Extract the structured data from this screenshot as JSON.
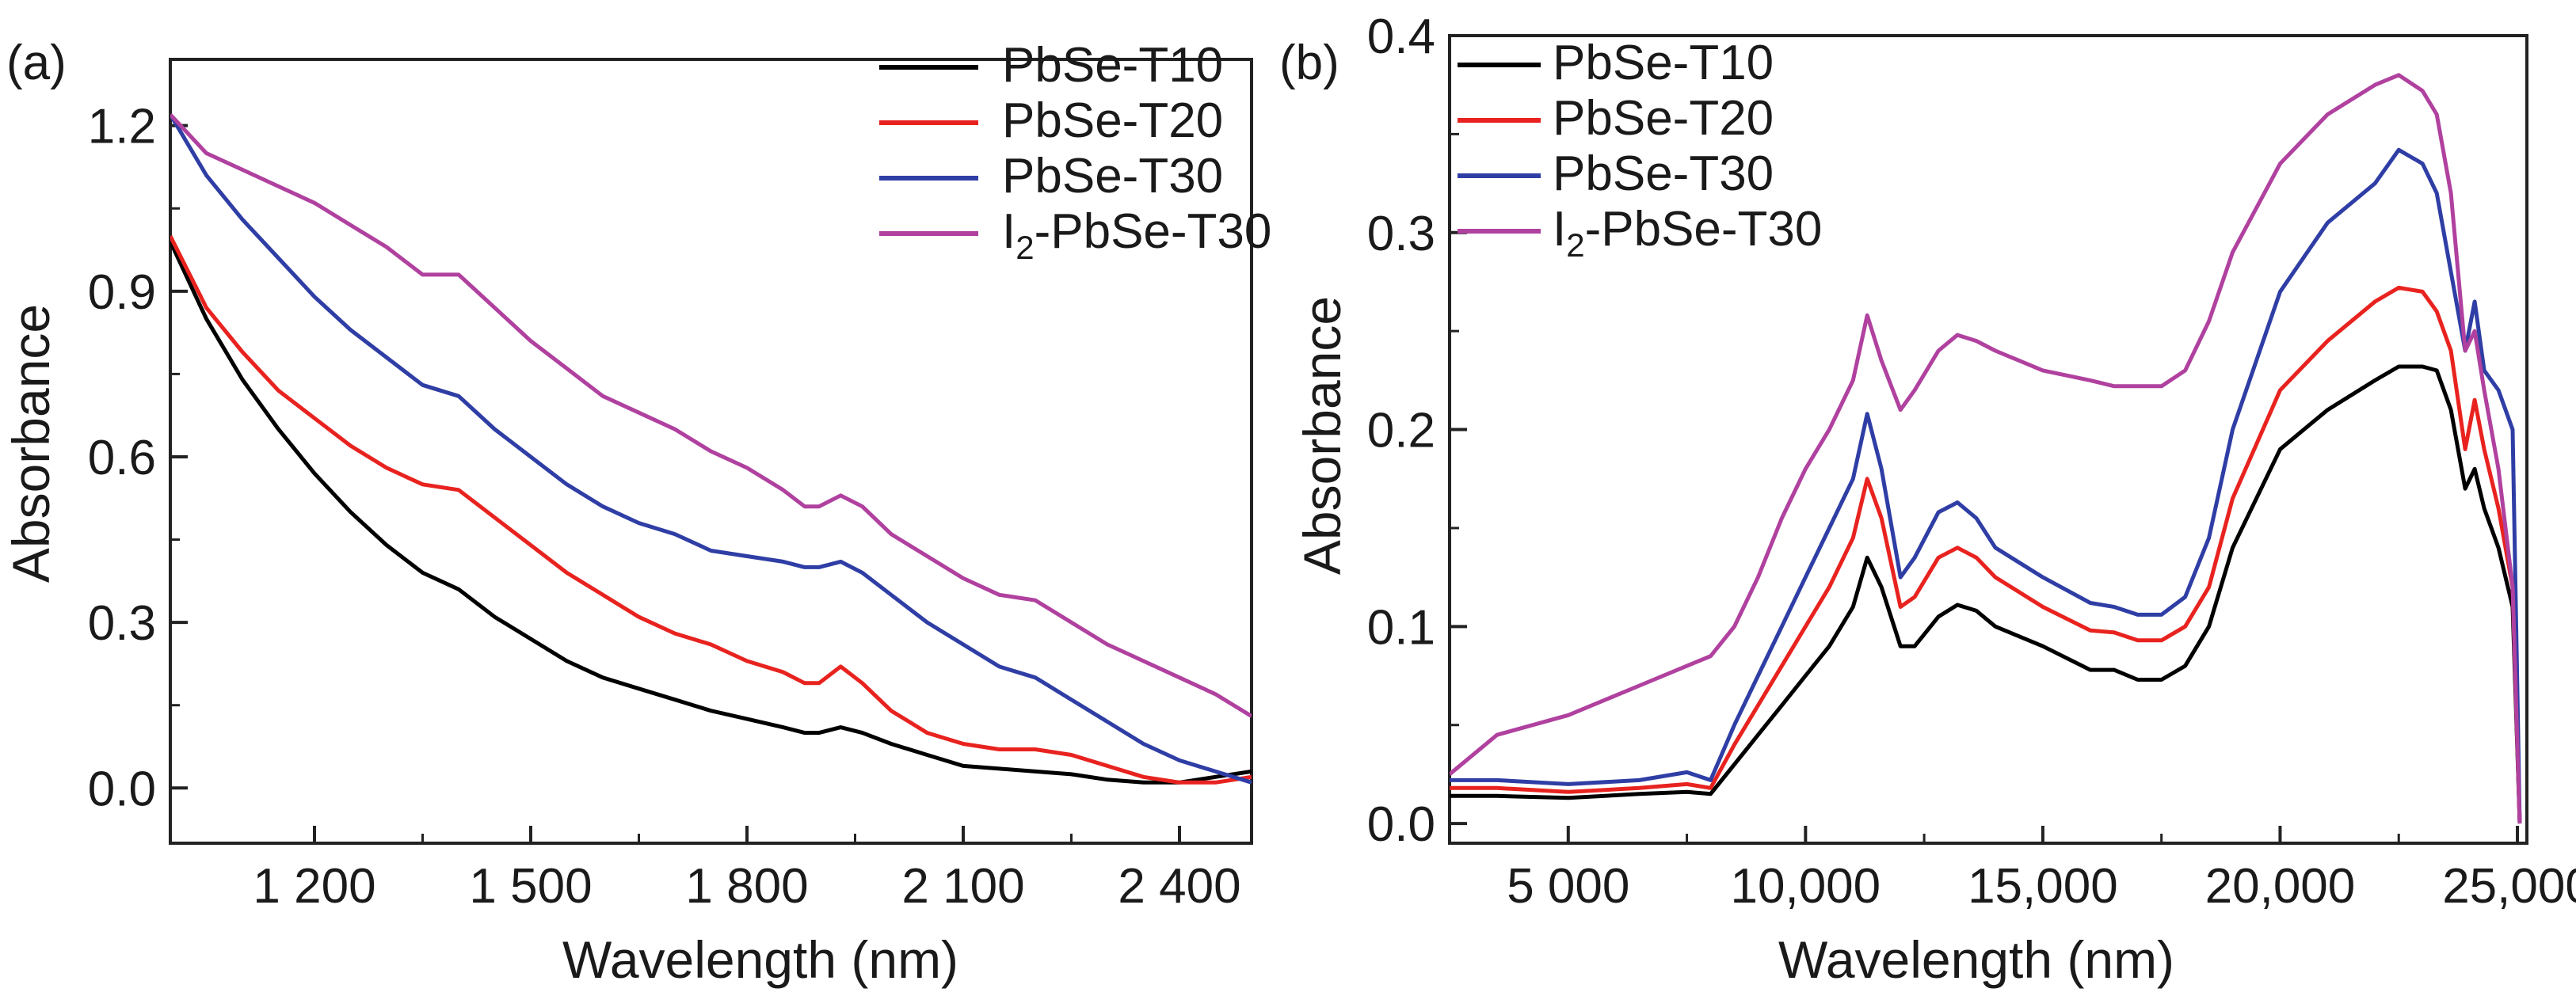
{
  "chart_data": [
    {
      "panel": "(a)",
      "type": "line",
      "xlabel": "Wavelength (nm)",
      "ylabel": "Absorbance",
      "xlim": [
        1000,
        2500
      ],
      "ylim": [
        -0.1,
        1.32
      ],
      "xticks": [
        1200,
        1500,
        1800,
        2100,
        2400
      ],
      "xtick_labels": [
        "1 200",
        "1 500",
        "1 800",
        "2 100",
        "2 400"
      ],
      "yticks": [
        0.0,
        0.3,
        0.6,
        0.9,
        1.2
      ],
      "ytick_labels": [
        "0.0",
        "0.3",
        "0.6",
        "0.9",
        "1.2"
      ],
      "legend_position": "top-right",
      "series": [
        {
          "name": "PbSe-T10",
          "color": "#000000",
          "x": [
            1000,
            1050,
            1100,
            1150,
            1200,
            1250,
            1300,
            1350,
            1400,
            1450,
            1500,
            1550,
            1600,
            1650,
            1700,
            1750,
            1800,
            1850,
            1880,
            1900,
            1930,
            1960,
            2000,
            2050,
            2100,
            2150,
            2200,
            2250,
            2300,
            2350,
            2400,
            2450,
            2500
          ],
          "y": [
            0.99,
            0.85,
            0.74,
            0.65,
            0.57,
            0.5,
            0.44,
            0.39,
            0.36,
            0.31,
            0.27,
            0.23,
            0.2,
            0.18,
            0.16,
            0.14,
            0.125,
            0.11,
            0.1,
            0.1,
            0.11,
            0.1,
            0.08,
            0.06,
            0.04,
            0.035,
            0.03,
            0.025,
            0.015,
            0.01,
            0.01,
            0.02,
            0.03
          ]
        },
        {
          "name": "PbSe-T20",
          "color": "#e8231f",
          "x": [
            1000,
            1050,
            1100,
            1150,
            1200,
            1250,
            1300,
            1350,
            1400,
            1450,
            1500,
            1550,
            1600,
            1650,
            1700,
            1750,
            1800,
            1850,
            1880,
            1900,
            1930,
            1960,
            2000,
            2050,
            2100,
            2150,
            2200,
            2250,
            2300,
            2350,
            2400,
            2450,
            2500
          ],
          "y": [
            1.0,
            0.87,
            0.79,
            0.72,
            0.67,
            0.62,
            0.58,
            0.55,
            0.54,
            0.49,
            0.44,
            0.39,
            0.35,
            0.31,
            0.28,
            0.26,
            0.23,
            0.21,
            0.19,
            0.19,
            0.22,
            0.19,
            0.14,
            0.1,
            0.08,
            0.07,
            0.07,
            0.06,
            0.04,
            0.02,
            0.01,
            0.01,
            0.02
          ]
        },
        {
          "name": "PbSe-T30",
          "color": "#2f3ea5",
          "x": [
            1000,
            1050,
            1100,
            1150,
            1200,
            1250,
            1300,
            1350,
            1400,
            1450,
            1500,
            1550,
            1600,
            1650,
            1700,
            1750,
            1800,
            1850,
            1880,
            1900,
            1930,
            1960,
            2000,
            2050,
            2100,
            2150,
            2200,
            2250,
            2300,
            2350,
            2400,
            2450,
            2500
          ],
          "y": [
            1.22,
            1.11,
            1.03,
            0.96,
            0.89,
            0.83,
            0.78,
            0.73,
            0.71,
            0.65,
            0.6,
            0.55,
            0.51,
            0.48,
            0.46,
            0.43,
            0.42,
            0.41,
            0.4,
            0.4,
            0.41,
            0.39,
            0.35,
            0.3,
            0.26,
            0.22,
            0.2,
            0.16,
            0.12,
            0.08,
            0.05,
            0.03,
            0.01
          ]
        },
        {
          "name": "I2-PbSe-T30",
          "color": "#b0419f",
          "x": [
            1000,
            1050,
            1100,
            1150,
            1200,
            1250,
            1300,
            1350,
            1400,
            1450,
            1500,
            1550,
            1600,
            1650,
            1700,
            1750,
            1800,
            1850,
            1880,
            1900,
            1930,
            1960,
            2000,
            2050,
            2100,
            2150,
            2200,
            2250,
            2300,
            2350,
            2400,
            2450,
            2500
          ],
          "y": [
            1.22,
            1.15,
            1.12,
            1.09,
            1.06,
            1.02,
            0.98,
            0.93,
            0.93,
            0.87,
            0.81,
            0.76,
            0.71,
            0.68,
            0.65,
            0.61,
            0.58,
            0.54,
            0.51,
            0.51,
            0.53,
            0.51,
            0.46,
            0.42,
            0.38,
            0.35,
            0.34,
            0.3,
            0.26,
            0.23,
            0.2,
            0.17,
            0.13
          ]
        }
      ]
    },
    {
      "panel": "(b)",
      "type": "line",
      "xlabel": "Wavelength (nm)",
      "ylabel": "Absorbance",
      "xlim": [
        2500,
        25200
      ],
      "ylim": [
        -0.01,
        0.4
      ],
      "xticks": [
        5000,
        10000,
        15000,
        20000,
        25000
      ],
      "xtick_labels": [
        "5 000",
        "10,000",
        "15,000",
        "20,000",
        "25,000"
      ],
      "yticks": [
        0.0,
        0.1,
        0.2,
        0.3,
        0.4
      ],
      "ytick_labels": [
        "0.0",
        "0.1",
        "0.2",
        "0.3",
        "0.4"
      ],
      "legend_position": "top-left",
      "series": [
        {
          "name": "PbSe-T10",
          "color": "#000000",
          "x": [
            2500,
            3500,
            5000,
            6500,
            7500,
            8000,
            8500,
            9000,
            9500,
            10000,
            10500,
            11000,
            11300,
            11600,
            12000,
            12300,
            12800,
            13200,
            13600,
            14000,
            15000,
            16000,
            16500,
            17000,
            17500,
            18000,
            18500,
            19000,
            20000,
            21000,
            22000,
            22500,
            23000,
            23300,
            23600,
            23900,
            24100,
            24300,
            24600,
            24900,
            25050
          ],
          "y": [
            0.014,
            0.014,
            0.013,
            0.015,
            0.016,
            0.015,
            0.03,
            0.045,
            0.06,
            0.075,
            0.09,
            0.11,
            0.135,
            0.12,
            0.09,
            0.09,
            0.105,
            0.111,
            0.108,
            0.1,
            0.09,
            0.078,
            0.078,
            0.073,
            0.073,
            0.08,
            0.1,
            0.14,
            0.19,
            0.21,
            0.225,
            0.232,
            0.232,
            0.23,
            0.21,
            0.17,
            0.18,
            0.16,
            0.14,
            0.11,
            0.0
          ]
        },
        {
          "name": "PbSe-T20",
          "color": "#e8231f",
          "x": [
            2500,
            3500,
            5000,
            6500,
            7500,
            8000,
            8500,
            9000,
            9500,
            10000,
            10500,
            11000,
            11300,
            11600,
            12000,
            12300,
            12800,
            13200,
            13600,
            14000,
            15000,
            16000,
            16500,
            17000,
            17500,
            18000,
            18500,
            19000,
            20000,
            21000,
            22000,
            22500,
            23000,
            23300,
            23600,
            23900,
            24100,
            24300,
            24600,
            24900,
            25050
          ],
          "y": [
            0.018,
            0.018,
            0.016,
            0.018,
            0.02,
            0.018,
            0.04,
            0.06,
            0.08,
            0.1,
            0.12,
            0.145,
            0.175,
            0.155,
            0.11,
            0.115,
            0.135,
            0.14,
            0.135,
            0.125,
            0.11,
            0.098,
            0.097,
            0.093,
            0.093,
            0.1,
            0.12,
            0.165,
            0.22,
            0.245,
            0.265,
            0.272,
            0.27,
            0.26,
            0.24,
            0.19,
            0.215,
            0.19,
            0.16,
            0.12,
            0.0
          ]
        },
        {
          "name": "PbSe-T30",
          "color": "#2f3ea5",
          "x": [
            2500,
            3500,
            5000,
            6500,
            7500,
            8000,
            8500,
            9000,
            9500,
            10000,
            10500,
            11000,
            11300,
            11600,
            12000,
            12300,
            12800,
            13200,
            13600,
            14000,
            15000,
            16000,
            16500,
            17000,
            17500,
            18000,
            18500,
            19000,
            20000,
            21000,
            22000,
            22500,
            23000,
            23300,
            23600,
            23900,
            24100,
            24300,
            24600,
            24900,
            25050
          ],
          "y": [
            0.022,
            0.022,
            0.02,
            0.022,
            0.026,
            0.022,
            0.05,
            0.075,
            0.1,
            0.125,
            0.15,
            0.175,
            0.208,
            0.18,
            0.125,
            0.135,
            0.158,
            0.163,
            0.155,
            0.14,
            0.125,
            0.112,
            0.11,
            0.106,
            0.106,
            0.115,
            0.145,
            0.2,
            0.27,
            0.305,
            0.325,
            0.342,
            0.335,
            0.32,
            0.28,
            0.24,
            0.265,
            0.23,
            0.22,
            0.2,
            0.0
          ]
        },
        {
          "name": "I2-PbSe-T30",
          "color": "#b0419f",
          "x": [
            2500,
            3500,
            5000,
            6500,
            7500,
            8000,
            8500,
            9000,
            9500,
            10000,
            10500,
            11000,
            11300,
            11600,
            12000,
            12300,
            12800,
            13200,
            13600,
            14000,
            15000,
            16000,
            16500,
            17000,
            17500,
            18000,
            18500,
            19000,
            20000,
            21000,
            22000,
            22500,
            23000,
            23300,
            23600,
            23900,
            24100,
            24300,
            24600,
            24900,
            25050
          ],
          "y": [
            0.025,
            0.045,
            0.055,
            0.07,
            0.08,
            0.085,
            0.1,
            0.125,
            0.155,
            0.18,
            0.2,
            0.225,
            0.258,
            0.235,
            0.21,
            0.22,
            0.24,
            0.248,
            0.245,
            0.24,
            0.23,
            0.225,
            0.222,
            0.222,
            0.222,
            0.23,
            0.255,
            0.29,
            0.335,
            0.36,
            0.375,
            0.38,
            0.372,
            0.36,
            0.32,
            0.24,
            0.25,
            0.22,
            0.18,
            0.12,
            0.0
          ]
        }
      ]
    }
  ]
}
